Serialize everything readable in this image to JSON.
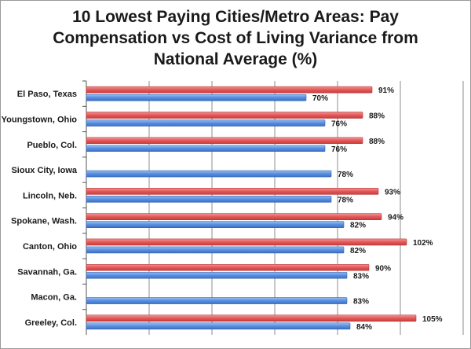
{
  "chart_data": {
    "type": "bar",
    "orientation": "horizontal",
    "title_lines": [
      "10 Lowest Paying Cities/Metro Areas: Pay",
      "Compensation vs Cost of Living  Variance from",
      "National Average (%)"
    ],
    "categories": [
      "El Paso, Texas",
      "Youngstown, Ohio",
      "Pueblo, Col.",
      "Sioux City, Iowa",
      "Lincoln, Neb.",
      "Spokane, Wash.",
      "Canton,  Ohio",
      "Savannah, Ga.",
      "Macon, Ga.",
      "Greeley, Col."
    ],
    "series": [
      {
        "values": [
          91,
          88,
          88,
          null,
          93,
          94,
          102,
          90,
          null,
          105
        ],
        "labels": [
          "91%",
          "88%",
          "88%",
          "",
          "93%",
          "94%",
          "102%",
          "90%",
          "",
          "105%"
        ],
        "color": "#e05a5a"
      },
      {
        "values": [
          70,
          76,
          76,
          78,
          78,
          82,
          82,
          83,
          83,
          84
        ],
        "labels": [
          "70%",
          "76%",
          "76%",
          "78%",
          "78%",
          "82%",
          "82%",
          "83%",
          "83%",
          "84%"
        ],
        "color": "#5a8fe0"
      }
    ],
    "xlim": [
      0,
      120
    ],
    "grid": true,
    "legend": "none"
  }
}
